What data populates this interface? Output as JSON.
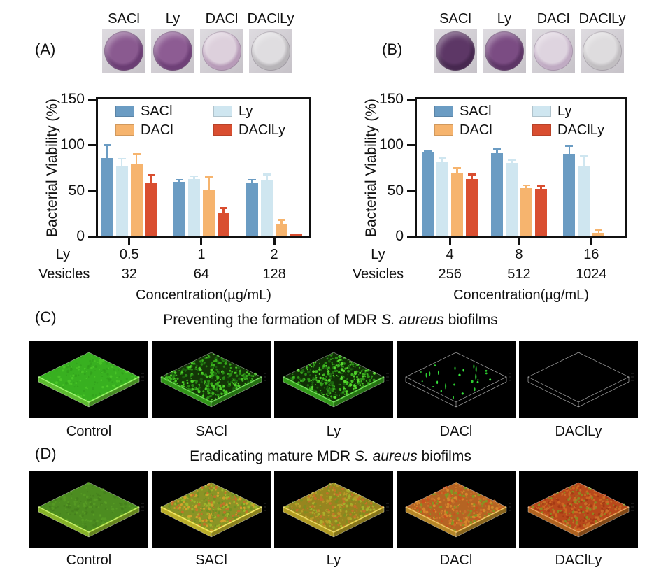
{
  "figure": {
    "panel_a": {
      "label": "(A)",
      "wells": [
        {
          "label": "SACl",
          "ring": "#6b3d74",
          "center": "#8a5a90"
        },
        {
          "label": "Ly",
          "ring": "#6f4078",
          "center": "#8d5c93"
        },
        {
          "label": "DACl",
          "ring": "#b79bb8",
          "center": "#ddd0dc"
        },
        {
          "label": "DAClLy",
          "ring": "#b7b4b8",
          "center": "#dfdde0"
        }
      ]
    },
    "panel_b": {
      "label": "(B)",
      "wells": [
        {
          "label": "SACl",
          "ring": "#472850",
          "center": "#5d3766"
        },
        {
          "label": "Ly",
          "ring": "#5d3566",
          "center": "#7b4c83"
        },
        {
          "label": "DACl",
          "ring": "#c0abc3",
          "center": "#ded4df"
        },
        {
          "label": "DAClLy",
          "ring": "#c1bec1",
          "center": "#dedcde"
        }
      ]
    },
    "panel_c": {
      "label": "(C)",
      "title": {
        "prefix": "Preventing the formation of MDR ",
        "italic": "S. aureus",
        "suffix": " biofilms"
      },
      "images": [
        {
          "label": "Control",
          "style": "solid",
          "base": "#38b020",
          "edge": "#74e83c",
          "speckles": [
            "#2f9a1b",
            "#55d42e"
          ],
          "density": 150
        },
        {
          "label": "SACl",
          "style": "speckled",
          "base": "#133607",
          "edge": "#3db91f",
          "speckles": [
            "#3db91f",
            "#55dd2e",
            "#2a8f15",
            "#1c6410"
          ],
          "density": 340
        },
        {
          "label": "Ly",
          "style": "speckled",
          "base": "#102e06",
          "edge": "#40c022",
          "speckles": [
            "#40c022",
            "#5ce332",
            "#2f9a18",
            "#1d660f"
          ],
          "density": 340
        },
        {
          "label": "DACl",
          "style": "sparse",
          "base": "#000000",
          "edge": "",
          "speckles": [
            "#39e83f",
            "#2bc92f"
          ],
          "density": 26
        },
        {
          "label": "DAClLy",
          "style": "empty",
          "base": "#000000",
          "edge": "",
          "speckles": [],
          "density": 0
        }
      ]
    },
    "panel_d": {
      "label": "(D)",
      "title": {
        "prefix": "Eradicating mature MDR ",
        "italic": "S. aureus",
        "suffix": " biofilms"
      },
      "images": [
        {
          "label": "Control",
          "style": "solid",
          "base": "#4c8c20",
          "edge": "#a8de33",
          "speckles": [
            "#417a1c",
            "#5da426"
          ],
          "density": 170
        },
        {
          "label": "SACl",
          "style": "speckled",
          "base": "#8a9426",
          "edge": "#e8d934",
          "speckles": [
            "#c9702a",
            "#9fba2c",
            "#d8a32e",
            "#6f8f22"
          ],
          "density": 360
        },
        {
          "label": "Ly",
          "style": "speckled",
          "base": "#97851f",
          "edge": "#ddc32e",
          "speckles": [
            "#b99b28",
            "#7e8e20",
            "#c9702a",
            "#a8b42c"
          ],
          "density": 360
        },
        {
          "label": "DACl",
          "style": "speckled",
          "base": "#b56423",
          "edge": "#e2a832",
          "speckles": [
            "#cc4f1e",
            "#7f9a24",
            "#d98a2c",
            "#c9702a"
          ],
          "density": 360
        },
        {
          "label": "DAClLy",
          "style": "speckled",
          "base": "#b8491b",
          "edge": "#d97a28",
          "speckles": [
            "#d06a24",
            "#a33914",
            "#c9702a",
            "#8a8f22"
          ],
          "density": 360
        }
      ]
    }
  },
  "chart_data": [
    {
      "panel": "A",
      "type": "bar",
      "ylabel": "Bacterial Viability (%)",
      "xlabel": "Concentration(µg/mL)",
      "ylim": [
        0,
        150
      ],
      "yticks": [
        0,
        50,
        100,
        150
      ],
      "x_rows": [
        {
          "label": "Ly",
          "values": [
            "0.5",
            "1",
            "2"
          ]
        },
        {
          "label": "Vesicles",
          "values": [
            "32",
            "64",
            "128"
          ]
        }
      ],
      "series": [
        {
          "name": "SACl",
          "color": "#6b9cc3",
          "values": [
            86,
            60,
            58
          ],
          "errors": [
            14,
            2,
            4
          ]
        },
        {
          "name": "Ly",
          "color": "#cfe6f0",
          "values": [
            77,
            63,
            61
          ],
          "errors": [
            8,
            3,
            7
          ]
        },
        {
          "name": "DACl",
          "color": "#f6b46e",
          "values": [
            79,
            51,
            14
          ],
          "errors": [
            11,
            14,
            4
          ]
        },
        {
          "name": "DAClLy",
          "color": "#d94e30",
          "values": [
            58,
            25,
            2
          ],
          "errors": [
            9,
            6,
            0
          ]
        }
      ],
      "legend_position": "top-inside",
      "grid": false
    },
    {
      "panel": "B",
      "type": "bar",
      "ylabel": "Bacterial Viability (%)",
      "xlabel": "Concentration(µg/mL)",
      "ylim": [
        0,
        150
      ],
      "yticks": [
        0,
        50,
        100,
        150
      ],
      "x_rows": [
        {
          "label": "Ly",
          "values": [
            "4",
            "8",
            "16"
          ]
        },
        {
          "label": "Vesicles",
          "values": [
            "256",
            "512",
            "1024"
          ]
        }
      ],
      "series": [
        {
          "name": "SACl",
          "color": "#6b9cc3",
          "values": [
            92,
            91,
            90
          ],
          "errors": [
            2,
            5,
            9
          ]
        },
        {
          "name": "Ly",
          "color": "#cfe6f0",
          "values": [
            81,
            80,
            77
          ],
          "errors": [
            5,
            4,
            11
          ]
        },
        {
          "name": "DACl",
          "color": "#f6b46e",
          "values": [
            69,
            53,
            4
          ],
          "errors": [
            6,
            3,
            3
          ]
        },
        {
          "name": "DAClLy",
          "color": "#d94e30",
          "values": [
            63,
            52,
            1
          ],
          "errors": [
            5,
            3,
            0
          ]
        }
      ],
      "legend_position": "top-inside",
      "grid": false
    }
  ]
}
